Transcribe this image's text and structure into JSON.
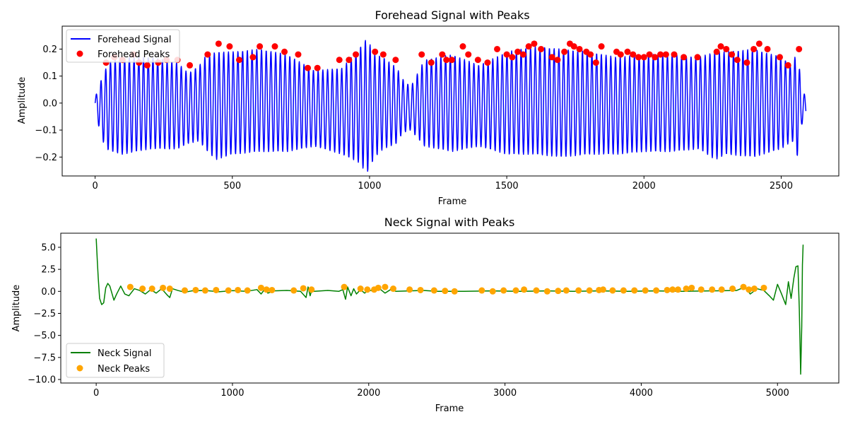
{
  "chart_data": [
    {
      "type": "line",
      "title": "Forehead Signal with Peaks",
      "xlabel": "Frame",
      "ylabel": "Amplitude",
      "xlim": [
        -120,
        2710
      ],
      "ylim": [
        -0.27,
        0.285
      ],
      "xticks": [
        0,
        500,
        1000,
        1500,
        2000,
        2500
      ],
      "yticks": [
        -0.2,
        -0.1,
        0.0,
        0.1,
        0.2
      ],
      "ytick_labels": [
        "−0.2",
        "−0.1",
        "0.0",
        "0.1",
        "0.2"
      ],
      "legend_placement": "upper-left",
      "grid": false,
      "n_frames": 2590,
      "period": 17.2,
      "series": [
        {
          "name": "Forehead Signal",
          "kind": "line",
          "color": "#0000ff",
          "envelope_x": [
            0,
            20,
            40,
            60,
            100,
            200,
            300,
            340,
            380,
            400,
            440,
            500,
            600,
            700,
            800,
            900,
            960,
            990,
            1020,
            1050,
            1100,
            1120,
            1150,
            1200,
            1300,
            1400,
            1500,
            1600,
            1700,
            1800,
            1900,
            2000,
            2100,
            2200,
            2260,
            2300,
            2400,
            2500,
            2540,
            2560,
            2575,
            2590
          ],
          "envelope_amp": [
            0.02,
            0.1,
            0.15,
            0.17,
            0.18,
            0.17,
            0.16,
            0.13,
            0.14,
            0.17,
            0.2,
            0.19,
            0.19,
            0.18,
            0.14,
            0.16,
            0.21,
            0.25,
            0.19,
            0.17,
            0.14,
            0.1,
            0.08,
            0.16,
            0.18,
            0.15,
            0.19,
            0.2,
            0.2,
            0.19,
            0.18,
            0.18,
            0.18,
            0.17,
            0.2,
            0.19,
            0.2,
            0.17,
            0.14,
            0.2,
            0.06,
            0.04
          ],
          "envelope_offset": [
            0.0,
            -0.02,
            -0.02,
            -0.01,
            -0.01,
            0.0,
            -0.01,
            -0.02,
            0.0,
            0.0,
            -0.01,
            0.0,
            0.01,
            0.0,
            -0.02,
            -0.03,
            -0.01,
            -0.01,
            -0.01,
            0.0,
            -0.01,
            -0.01,
            -0.02,
            0.0,
            0.0,
            -0.01,
            0.0,
            0.01,
            0.0,
            0.0,
            -0.01,
            0.0,
            0.0,
            0.0,
            -0.01,
            0.0,
            0.0,
            0.0,
            0.0,
            0.0,
            -0.02,
            -0.01
          ]
        },
        {
          "name": "Forehead Peaks",
          "kind": "scatter",
          "color": "#ff0000",
          "x": [
            40,
            70,
            100,
            140,
            160,
            190,
            230,
            260,
            300,
            345,
            410,
            450,
            490,
            525,
            575,
            600,
            655,
            690,
            740,
            775,
            810,
            890,
            925,
            950,
            1020,
            1050,
            1095,
            1190,
            1225,
            1265,
            1280,
            1300,
            1340,
            1360,
            1395,
            1430,
            1465,
            1500,
            1520,
            1540,
            1560,
            1580,
            1600,
            1625,
            1665,
            1685,
            1710,
            1730,
            1745,
            1765,
            1790,
            1805,
            1825,
            1845,
            1900,
            1915,
            1940,
            1960,
            1980,
            2000,
            2020,
            2040,
            2060,
            2080,
            2110,
            2145,
            2195,
            2265,
            2280,
            2300,
            2320,
            2340,
            2375,
            2400,
            2420,
            2450,
            2495,
            2525,
            2565
          ],
          "y": [
            0.15,
            0.17,
            0.16,
            0.18,
            0.15,
            0.14,
            0.15,
            0.16,
            0.16,
            0.14,
            0.18,
            0.22,
            0.21,
            0.16,
            0.17,
            0.21,
            0.21,
            0.19,
            0.18,
            0.13,
            0.13,
            0.16,
            0.16,
            0.18,
            0.19,
            0.18,
            0.16,
            0.18,
            0.15,
            0.18,
            0.16,
            0.16,
            0.21,
            0.18,
            0.16,
            0.15,
            0.2,
            0.18,
            0.17,
            0.19,
            0.18,
            0.21,
            0.22,
            0.2,
            0.17,
            0.16,
            0.19,
            0.22,
            0.21,
            0.2,
            0.19,
            0.18,
            0.15,
            0.21,
            0.19,
            0.18,
            0.19,
            0.18,
            0.17,
            0.17,
            0.18,
            0.17,
            0.18,
            0.18,
            0.18,
            0.17,
            0.17,
            0.19,
            0.21,
            0.2,
            0.18,
            0.16,
            0.15,
            0.2,
            0.22,
            0.2,
            0.17,
            0.14,
            0.2
          ]
        }
      ]
    },
    {
      "type": "line",
      "title": "Neck Signal with Peaks",
      "xlabel": "Frame",
      "ylabel": "Amplitude",
      "xlim": [
        -260,
        5450
      ],
      "ylim": [
        -10.4,
        6.6
      ],
      "xticks": [
        0,
        1000,
        2000,
        3000,
        4000,
        5000
      ],
      "yticks": [
        -10.0,
        -7.5,
        -5.0,
        -2.5,
        0.0,
        2.5,
        5.0
      ],
      "ytick_labels": [
        "−10.0",
        "−7.5",
        "−5.0",
        "−2.5",
        "0.0",
        "2.5",
        "5.0"
      ],
      "legend_placement": "lower-left",
      "grid": false,
      "n_frames": 5180,
      "series": [
        {
          "name": "Neck Signal",
          "kind": "line",
          "color": "#008000",
          "x": [
            0,
            8,
            15,
            25,
            40,
            55,
            70,
            85,
            100,
            115,
            130,
            150,
            180,
            210,
            240,
            280,
            320,
            360,
            400,
            440,
            480,
            520,
            540,
            560,
            600,
            650,
            700,
            800,
            900,
            1000,
            1100,
            1180,
            1210,
            1240,
            1260,
            1300,
            1400,
            1500,
            1540,
            1555,
            1570,
            1585,
            1600,
            1700,
            1780,
            1810,
            1830,
            1845,
            1870,
            1890,
            1910,
            1940,
            1970,
            2000,
            2040,
            2080,
            2120,
            2160,
            2200,
            2300,
            2400,
            2500,
            2700,
            2900,
            3100,
            3300,
            3500,
            3700,
            3900,
            4100,
            4300,
            4500,
            4700,
            4760,
            4800,
            4850,
            4900,
            4940,
            4970,
            5000,
            5030,
            5060,
            5080,
            5100,
            5120,
            5135,
            5150,
            5160,
            5170,
            5178,
            5183,
            5188
          ],
          "y": [
            6.0,
            3.5,
            1.5,
            -0.8,
            -1.5,
            -1.3,
            0.4,
            0.9,
            0.6,
            -0.2,
            -1.0,
            -0.3,
            0.6,
            -0.3,
            -0.5,
            0.3,
            0.1,
            -0.3,
            0.2,
            -0.2,
            0.3,
            -0.4,
            -0.7,
            0.3,
            0.1,
            -0.1,
            0.05,
            0.1,
            -0.05,
            0.08,
            0.0,
            0.2,
            -0.3,
            0.3,
            -0.2,
            0.05,
            0.1,
            0.0,
            -0.7,
            0.5,
            -0.5,
            0.3,
            0.0,
            0.1,
            0.0,
            0.2,
            -0.9,
            0.5,
            -0.5,
            0.3,
            -0.3,
            0.2,
            -0.2,
            0.15,
            0.0,
            0.3,
            -0.2,
            0.2,
            0.0,
            0.05,
            0.1,
            0.0,
            0.0,
            0.05,
            0.0,
            0.05,
            0.0,
            0.05,
            0.0,
            0.05,
            0.0,
            0.05,
            0.1,
            0.5,
            -0.3,
            0.3,
            0.1,
            -0.5,
            -1.0,
            0.8,
            -0.3,
            -1.5,
            1.1,
            -0.8,
            1.5,
            2.8,
            2.9,
            -2.0,
            -9.4,
            -4.0,
            3.0,
            5.3
          ]
        },
        {
          "name": "Neck Peaks",
          "kind": "scatter",
          "color": "#ffa500",
          "x": [
            250,
            340,
            410,
            490,
            540,
            650,
            730,
            800,
            880,
            970,
            1040,
            1110,
            1210,
            1250,
            1290,
            1450,
            1520,
            1580,
            1820,
            1940,
            1990,
            2040,
            2070,
            2120,
            2180,
            2300,
            2380,
            2480,
            2560,
            2630,
            2830,
            2910,
            2990,
            3080,
            3140,
            3230,
            3310,
            3390,
            3450,
            3540,
            3620,
            3690,
            3720,
            3790,
            3870,
            3950,
            4030,
            4110,
            4190,
            4230,
            4270,
            4330,
            4370,
            4440,
            4520,
            4590,
            4670,
            4750,
            4790,
            4830,
            4900
          ],
          "y": [
            0.5,
            0.3,
            0.3,
            0.4,
            0.3,
            0.1,
            0.15,
            0.1,
            0.15,
            0.1,
            0.15,
            0.1,
            0.4,
            0.2,
            0.15,
            0.1,
            0.35,
            0.2,
            0.5,
            0.3,
            0.2,
            0.2,
            0.4,
            0.5,
            0.3,
            0.2,
            0.15,
            0.1,
            0.05,
            0.0,
            0.1,
            0.0,
            0.1,
            0.1,
            0.2,
            0.1,
            0.0,
            0.05,
            0.1,
            0.1,
            0.1,
            0.15,
            0.2,
            0.1,
            0.1,
            0.1,
            0.1,
            0.1,
            0.15,
            0.2,
            0.2,
            0.3,
            0.4,
            0.2,
            0.2,
            0.2,
            0.3,
            0.5,
            0.2,
            0.3,
            0.4
          ]
        }
      ]
    }
  ]
}
